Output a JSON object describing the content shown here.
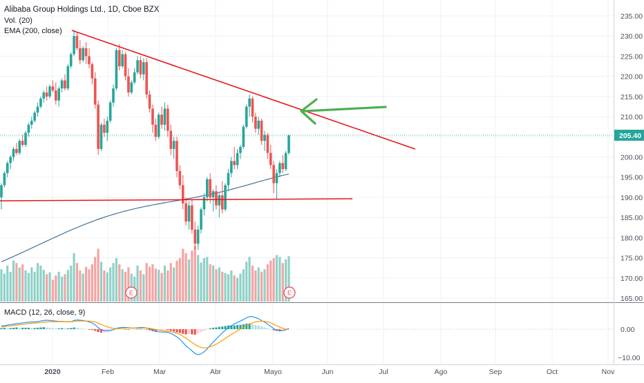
{
  "header": {
    "title": "Alibaba Group Holdings Ltd., 1D, Cboe BZX",
    "vol_label": "Vol. (20)",
    "ema_label": "EMA (200, close)",
    "macd_label": "MACD (12, 26, close, 9)"
  },
  "colors": {
    "up": "#26a69a",
    "down": "#ef5350",
    "vol_up": "#8fd1c7",
    "vol_down": "#f4a4a2",
    "ema": "#2f6690",
    "trendline": "#e8141a",
    "arrow": "#4caf50",
    "grid": "#eef1f5",
    "axis_text": "#4a4e59",
    "last_price_bg": "#26a69a",
    "macd_line": "#2196f3",
    "signal_line": "#ff9800",
    "earnings": "#e85a6d"
  },
  "price_axis": {
    "ticks": [
      "235.00",
      "230.00",
      "225.00",
      "220.00",
      "215.00",
      "210.00",
      "205.00",
      "200.00",
      "195.00",
      "190.00",
      "185.00",
      "180.00",
      "175.00",
      "170.00",
      "165.00"
    ],
    "last_price": "205.40"
  },
  "macd_axis": {
    "ticks": [
      "0.00",
      "−10.00"
    ]
  },
  "time_axis": {
    "ticks": [
      "2020",
      "Feb",
      "Mar",
      "Abr",
      "Mayo",
      "Jun",
      "Jul",
      "Ago",
      "Sep",
      "Oct",
      "Nov"
    ]
  },
  "earnings_markers": [
    "E",
    "E"
  ],
  "chart_data": {
    "type": "candlestick",
    "title": "Alibaba Group Holdings Ltd., 1D, Cboe BZX",
    "ylim": [
      164,
      237
    ],
    "last_price": 205.4,
    "candles_ohlc": [
      [
        190.0,
        193.5,
        187.0,
        193.0
      ],
      [
        193.0,
        196.5,
        192.5,
        196.0
      ],
      [
        196.0,
        199.0,
        195.0,
        198.5
      ],
      [
        198.5,
        200.5,
        197.0,
        200.0
      ],
      [
        200.0,
        202.5,
        199.0,
        202.0
      ],
      [
        202.0,
        203.5,
        200.5,
        201.0
      ],
      [
        201.0,
        204.5,
        200.5,
        204.0
      ],
      [
        204.0,
        205.5,
        202.5,
        203.0
      ],
      [
        203.0,
        206.5,
        202.5,
        206.0
      ],
      [
        206.0,
        208.5,
        205.0,
        208.0
      ],
      [
        208.0,
        210.0,
        207.0,
        209.0
      ],
      [
        209.0,
        211.5,
        208.5,
        211.0
      ],
      [
        211.0,
        213.5,
        210.0,
        212.5
      ],
      [
        212.5,
        215.0,
        212.0,
        214.5
      ],
      [
        214.5,
        216.5,
        213.5,
        216.0
      ],
      [
        216.0,
        217.5,
        214.0,
        215.0
      ],
      [
        215.0,
        218.0,
        214.5,
        217.5
      ],
      [
        217.5,
        219.0,
        216.0,
        216.5
      ],
      [
        216.5,
        218.5,
        213.0,
        214.0
      ],
      [
        214.0,
        217.5,
        212.5,
        217.0
      ],
      [
        217.0,
        219.5,
        216.0,
        219.0
      ],
      [
        219.0,
        220.5,
        216.5,
        217.0
      ],
      [
        217.0,
        223.0,
        216.5,
        222.5
      ],
      [
        222.5,
        226.0,
        222.0,
        225.5
      ],
      [
        225.5,
        231.5,
        225.0,
        230.0
      ],
      [
        230.0,
        231.0,
        226.5,
        227.0
      ],
      [
        227.0,
        229.0,
        223.0,
        224.0
      ],
      [
        224.0,
        227.5,
        223.5,
        227.0
      ],
      [
        227.0,
        228.5,
        223.0,
        225.0
      ],
      [
        225.0,
        227.0,
        222.0,
        223.0
      ],
      [
        223.0,
        223.5,
        218.0,
        219.5
      ],
      [
        219.5,
        221.0,
        212.0,
        213.0
      ],
      [
        213.0,
        214.0,
        200.5,
        202.0
      ],
      [
        202.0,
        208.5,
        201.5,
        208.0
      ],
      [
        208.0,
        209.5,
        205.0,
        206.0
      ],
      [
        206.0,
        210.0,
        204.0,
        209.0
      ],
      [
        209.0,
        214.0,
        208.5,
        213.5
      ],
      [
        213.5,
        218.0,
        212.5,
        217.0
      ],
      [
        217.0,
        227.0,
        216.5,
        226.5
      ],
      [
        226.5,
        228.0,
        221.5,
        222.5
      ],
      [
        222.5,
        226.5,
        222.0,
        225.5
      ],
      [
        225.5,
        226.0,
        219.0,
        220.0
      ],
      [
        220.0,
        222.0,
        215.0,
        216.0
      ],
      [
        216.0,
        219.0,
        215.5,
        218.5
      ],
      [
        218.5,
        222.0,
        218.0,
        221.0
      ],
      [
        221.0,
        225.0,
        220.5,
        224.0
      ],
      [
        224.0,
        225.0,
        219.5,
        220.5
      ],
      [
        220.5,
        224.5,
        219.0,
        223.5
      ],
      [
        223.5,
        224.5,
        214.5,
        215.5
      ],
      [
        215.5,
        216.5,
        211.0,
        212.0
      ],
      [
        212.0,
        213.0,
        206.0,
        208.0
      ],
      [
        208.0,
        209.5,
        204.0,
        205.0
      ],
      [
        205.0,
        211.0,
        204.5,
        210.5
      ],
      [
        210.5,
        212.5,
        207.0,
        208.0
      ],
      [
        208.0,
        213.5,
        206.5,
        212.0
      ],
      [
        212.0,
        213.0,
        205.0,
        206.5
      ],
      [
        206.5,
        208.0,
        200.5,
        202.0
      ],
      [
        202.0,
        205.0,
        199.5,
        204.0
      ],
      [
        204.0,
        205.0,
        195.0,
        196.5
      ],
      [
        196.5,
        198.0,
        192.0,
        193.0
      ],
      [
        193.0,
        195.5,
        187.0,
        188.5
      ],
      [
        188.5,
        190.0,
        183.0,
        184.0
      ],
      [
        184.0,
        189.0,
        182.0,
        188.0
      ],
      [
        188.0,
        189.5,
        181.0,
        182.0
      ],
      [
        182.0,
        184.0,
        177.0,
        178.5
      ],
      [
        178.5,
        183.0,
        177.0,
        182.0
      ],
      [
        182.0,
        187.5,
        181.0,
        187.0
      ],
      [
        187.0,
        191.0,
        185.5,
        190.0
      ],
      [
        190.0,
        195.0,
        189.0,
        194.5
      ],
      [
        194.5,
        196.0,
        188.5,
        190.0
      ],
      [
        190.0,
        192.0,
        186.5,
        191.5
      ],
      [
        191.5,
        193.0,
        187.0,
        188.0
      ],
      [
        188.0,
        191.0,
        185.0,
        190.5
      ],
      [
        190.5,
        194.0,
        186.0,
        187.0
      ],
      [
        187.0,
        193.5,
        186.5,
        193.0
      ],
      [
        193.0,
        197.0,
        191.5,
        196.0
      ],
      [
        196.0,
        200.0,
        195.0,
        199.0
      ],
      [
        199.0,
        202.5,
        197.0,
        198.0
      ],
      [
        198.0,
        202.0,
        197.0,
        201.0
      ],
      [
        201.0,
        203.0,
        199.5,
        202.5
      ],
      [
        202.5,
        208.0,
        202.0,
        207.5
      ],
      [
        207.5,
        213.0,
        207.0,
        212.5
      ],
      [
        212.5,
        215.5,
        210.0,
        214.5
      ],
      [
        214.5,
        215.0,
        208.5,
        210.0
      ],
      [
        210.0,
        211.0,
        206.0,
        207.0
      ],
      [
        207.0,
        210.0,
        205.5,
        209.0
      ],
      [
        209.0,
        209.5,
        203.0,
        204.0
      ],
      [
        204.0,
        206.5,
        201.5,
        205.5
      ],
      [
        205.5,
        206.0,
        199.5,
        201.0
      ],
      [
        201.0,
        203.0,
        197.0,
        198.0
      ],
      [
        198.0,
        199.0,
        191.0,
        193.5
      ],
      [
        193.5,
        197.0,
        189.5,
        196.0
      ],
      [
        196.0,
        199.0,
        195.0,
        198.5
      ],
      [
        198.5,
        200.5,
        196.0,
        197.0
      ],
      [
        197.0,
        201.5,
        196.5,
        201.0
      ],
      [
        201.0,
        205.5,
        200.5,
        205.4
      ]
    ],
    "volume_relative": [
      0.52,
      0.45,
      0.58,
      0.48,
      0.66,
      0.62,
      0.55,
      0.6,
      0.5,
      0.46,
      0.55,
      0.48,
      0.62,
      0.58,
      0.51,
      0.44,
      0.47,
      0.35,
      0.42,
      0.48,
      0.4,
      0.44,
      0.51,
      0.58,
      0.78,
      0.62,
      0.5,
      0.45,
      0.56,
      0.52,
      0.6,
      0.72,
      0.85,
      0.64,
      0.5,
      0.47,
      0.55,
      0.62,
      0.7,
      0.6,
      0.52,
      0.48,
      0.55,
      0.45,
      0.4,
      0.58,
      0.5,
      0.44,
      0.62,
      0.56,
      0.6,
      0.53,
      0.51,
      0.46,
      0.58,
      0.5,
      0.62,
      0.55,
      0.66,
      0.7,
      0.85,
      0.78,
      0.68,
      0.82,
      0.9,
      0.75,
      0.63,
      0.7,
      0.72,
      0.6,
      0.58,
      0.52,
      0.55,
      0.48,
      0.46,
      0.44,
      0.5,
      0.42,
      0.38,
      0.45,
      0.52,
      0.64,
      0.72,
      0.58,
      0.5,
      0.55,
      0.48,
      0.52,
      0.6,
      0.66,
      0.7,
      0.75,
      0.72,
      0.62,
      0.68,
      0.73
    ],
    "ema200": {
      "name": "EMA (200, close)",
      "start": 174.0,
      "end": 194.5
    },
    "trendlines": [
      {
        "name": "descending resistance",
        "from": [
          0.112,
          231.5
        ],
        "to": [
          0.645,
          201.5
        ]
      },
      {
        "name": "horizontal support",
        "from": [
          0.0,
          188.8
        ],
        "to": [
          0.547,
          189.3
        ]
      }
    ],
    "macd": {
      "name": "MACD (12, 26, close, 9)",
      "ylim": [
        -11,
        4
      ],
      "histogram_relative": [
        0.4,
        0.5,
        0.3,
        0.4,
        0.5,
        0.6,
        0.4,
        0.5,
        0.5,
        0.5,
        0.4,
        0.4,
        0.5,
        0.6,
        0.7,
        0.6,
        0.5,
        0.4,
        0.3,
        0.3,
        0.4,
        0.3,
        0.3,
        0.4,
        0.6,
        0.5,
        0.3,
        0.2,
        0.1,
        -0.1,
        -0.3,
        -0.6,
        -1.0,
        -1.2,
        -1.1,
        -0.9,
        -0.6,
        -0.3,
        0.2,
        0.1,
        0.0,
        -0.1,
        -0.2,
        -0.1,
        0.0,
        0.1,
        0.1,
        0.0,
        -0.2,
        -0.4,
        -0.7,
        -0.8,
        -0.5,
        -0.4,
        -0.2,
        -0.3,
        -0.6,
        -0.8,
        -1.1,
        -1.3,
        -1.6,
        -1.8,
        -1.7,
        -1.8,
        -1.9,
        -1.5,
        -1.0,
        -0.6,
        0.1,
        0.3,
        0.5,
        0.6,
        0.8,
        0.9,
        1.1,
        1.3,
        1.3,
        1.3,
        1.4,
        1.5,
        1.7,
        1.9,
        2.0,
        1.7,
        1.4,
        1.2,
        0.9,
        0.6,
        0.3,
        0.0,
        -0.4,
        -0.6,
        -0.7,
        -0.6,
        -0.4,
        -0.2
      ],
      "macd_line_relative": [
        1.1,
        1.2,
        1.4,
        1.6,
        1.7,
        1.9,
        2.0,
        2.2,
        2.3,
        2.4,
        2.5,
        2.5,
        2.6,
        2.8,
        3.0,
        3.1,
        3.0,
        2.9,
        2.8,
        2.7,
        2.7,
        2.6,
        2.5,
        2.6,
        3.0,
        3.2,
        3.1,
        3.0,
        2.8,
        2.5,
        2.1,
        1.5,
        0.5,
        -0.2,
        -0.5,
        -0.6,
        -0.5,
        -0.2,
        0.3,
        0.5,
        0.6,
        0.6,
        0.5,
        0.4,
        0.4,
        0.5,
        0.6,
        0.6,
        0.4,
        0.1,
        -0.3,
        -0.8,
        -0.9,
        -1.0,
        -1.0,
        -1.1,
        -1.5,
        -2.0,
        -2.7,
        -3.5,
        -4.6,
        -5.8,
        -6.6,
        -7.5,
        -8.4,
        -8.8,
        -8.5,
        -7.8,
        -6.8,
        -5.6,
        -4.5,
        -3.4,
        -2.3,
        -1.3,
        -0.4,
        0.5,
        1.2,
        1.8,
        2.3,
        2.8,
        3.3,
        3.9,
        4.3,
        4.3,
        4.0,
        3.6,
        3.0,
        2.4,
        1.7,
        1.0,
        0.2,
        -0.4,
        -0.6,
        -0.5,
        -0.2,
        0.3
      ],
      "signal_line_relative": [
        0.8,
        0.9,
        1.0,
        1.1,
        1.3,
        1.4,
        1.5,
        1.7,
        1.8,
        1.9,
        2.0,
        2.1,
        2.2,
        2.3,
        2.4,
        2.5,
        2.6,
        2.6,
        2.6,
        2.6,
        2.6,
        2.6,
        2.6,
        2.6,
        2.7,
        2.8,
        2.8,
        2.8,
        2.8,
        2.8,
        2.7,
        2.5,
        2.1,
        1.6,
        1.2,
        0.8,
        0.5,
        0.3,
        0.2,
        0.2,
        0.3,
        0.4,
        0.4,
        0.4,
        0.4,
        0.4,
        0.4,
        0.4,
        0.4,
        0.3,
        0.1,
        -0.1,
        -0.3,
        -0.5,
        -0.6,
        -0.7,
        -0.9,
        -1.1,
        -1.4,
        -1.8,
        -2.4,
        -3.1,
        -3.8,
        -4.6,
        -5.3,
        -5.9,
        -6.3,
        -6.5,
        -6.4,
        -6.1,
        -5.7,
        -5.2,
        -4.6,
        -3.9,
        -3.2,
        -2.5,
        -1.8,
        -1.2,
        -0.6,
        0.0,
        0.6,
        1.2,
        1.7,
        2.2,
        2.5,
        2.7,
        2.8,
        2.7,
        2.5,
        2.2,
        1.7,
        1.2,
        0.7,
        0.3,
        0.0,
        0.0
      ]
    }
  }
}
